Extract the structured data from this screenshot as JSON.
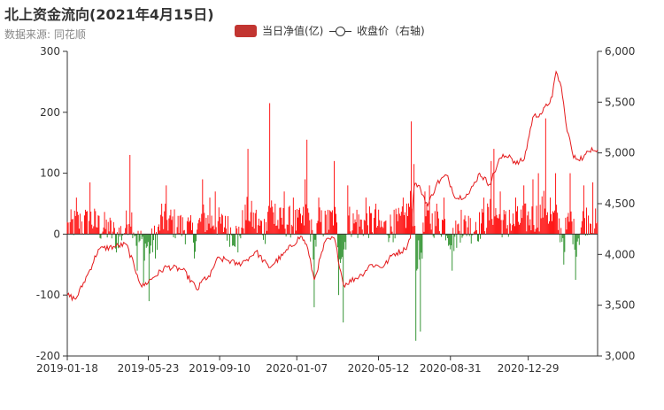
{
  "header": {
    "title": "北上资金流向(2021年4月15日)",
    "subtitle": "数据来源: 同花顺"
  },
  "legend": {
    "bar_label": "当日净值(亿)",
    "line_label": "收盘价（右轴)"
  },
  "colors": {
    "positive": "#ff0000",
    "negative": "#228b22",
    "legend_bar": "#c23531",
    "line": "#e41a1c",
    "axis": "#333333"
  },
  "chart_data": {
    "type": "bar+line",
    "x_ticks": [
      "2019-01-18",
      "2019-05-23",
      "2019-09-10",
      "2020-01-07",
      "2020-05-12",
      "2020-08-31",
      "2020-12-29"
    ],
    "x_range": [
      "2019-01-18",
      "2021-04-15"
    ],
    "left_axis": {
      "min": -200,
      "max": 300,
      "ticks": [
        -200,
        -100,
        0,
        100,
        200,
        300
      ]
    },
    "right_axis": {
      "min": 3000,
      "max": 6000,
      "ticks": [
        "3,000",
        "3,500",
        "4,000",
        "4,500",
        "5,000",
        "5,500",
        "6,000"
      ]
    },
    "net_inflow_keypoints": [
      [
        "2019-01-18",
        20
      ],
      [
        "2019-02-01",
        60
      ],
      [
        "2019-02-15",
        40
      ],
      [
        "2019-02-22",
        85
      ],
      [
        "2019-03-08",
        30
      ],
      [
        "2019-03-22",
        20
      ],
      [
        "2019-04-03",
        -30
      ],
      [
        "2019-04-17",
        10
      ],
      [
        "2019-04-25",
        130
      ],
      [
        "2019-05-06",
        -60
      ],
      [
        "2019-05-15",
        -80
      ],
      [
        "2019-05-24",
        -110
      ],
      [
        "2019-06-03",
        -40
      ],
      [
        "2019-06-12",
        50
      ],
      [
        "2019-06-20",
        80
      ],
      [
        "2019-07-10",
        30
      ],
      [
        "2019-07-24",
        20
      ],
      [
        "2019-08-02",
        -40
      ],
      [
        "2019-08-14",
        90
      ],
      [
        "2019-08-26",
        60
      ],
      [
        "2019-09-03",
        70
      ],
      [
        "2019-09-18",
        30
      ],
      [
        "2019-10-08",
        -30
      ],
      [
        "2019-10-24",
        140
      ],
      [
        "2019-11-05",
        40
      ],
      [
        "2019-11-20",
        20
      ],
      [
        "2019-11-26",
        215
      ],
      [
        "2019-12-05",
        50
      ],
      [
        "2019-12-18",
        70
      ],
      [
        "2020-01-02",
        60
      ],
      [
        "2020-01-10",
        40
      ],
      [
        "2020-01-20",
        90
      ],
      [
        "2020-01-23",
        155
      ],
      [
        "2020-02-03",
        -120
      ],
      [
        "2020-02-10",
        60
      ],
      [
        "2020-02-24",
        40
      ],
      [
        "2020-03-05",
        120
      ],
      [
        "2020-03-12",
        -100
      ],
      [
        "2020-03-19",
        -145
      ],
      [
        "2020-03-26",
        80
      ],
      [
        "2020-04-09",
        40
      ],
      [
        "2020-04-22",
        60
      ],
      [
        "2020-05-08",
        50
      ],
      [
        "2020-05-20",
        20
      ],
      [
        "2020-06-05",
        40
      ],
      [
        "2020-06-19",
        60
      ],
      [
        "2020-07-01",
        185
      ],
      [
        "2020-07-06",
        115
      ],
      [
        "2020-07-09",
        -175
      ],
      [
        "2020-07-16",
        -160
      ],
      [
        "2020-07-23",
        70
      ],
      [
        "2020-07-30",
        80
      ],
      [
        "2020-08-10",
        50
      ],
      [
        "2020-08-21",
        60
      ],
      [
        "2020-09-03",
        -60
      ],
      [
        "2020-09-16",
        40
      ],
      [
        "2020-09-28",
        30
      ],
      [
        "2020-10-09",
        20
      ],
      [
        "2020-10-21",
        60
      ],
      [
        "2020-11-02",
        120
      ],
      [
        "2020-11-06",
        140
      ],
      [
        "2020-11-16",
        70
      ],
      [
        "2020-11-30",
        40
      ],
      [
        "2020-12-10",
        60
      ],
      [
        "2020-12-22",
        80
      ],
      [
        "2021-01-05",
        90
      ],
      [
        "2021-01-14",
        100
      ],
      [
        "2021-01-25",
        190
      ],
      [
        "2021-02-01",
        60
      ],
      [
        "2021-02-09",
        100
      ],
      [
        "2021-02-22",
        -50
      ],
      [
        "2021-03-04",
        100
      ],
      [
        "2021-03-12",
        -75
      ],
      [
        "2021-03-24",
        80
      ],
      [
        "2021-04-07",
        85
      ],
      [
        "2021-04-15",
        20
      ]
    ],
    "close_price_keypoints": [
      [
        "2019-01-18",
        3600
      ],
      [
        "2019-01-31",
        3560
      ],
      [
        "2019-02-22",
        3850
      ],
      [
        "2019-03-07",
        4050
      ],
      [
        "2019-04-03",
        4080
      ],
      [
        "2019-04-19",
        4100
      ],
      [
        "2019-05-06",
        3800
      ],
      [
        "2019-05-13",
        3680
      ],
      [
        "2019-05-30",
        3770
      ],
      [
        "2019-06-20",
        3880
      ],
      [
        "2019-07-15",
        3850
      ],
      [
        "2019-08-07",
        3650
      ],
      [
        "2019-08-16",
        3760
      ],
      [
        "2019-08-26",
        3780
      ],
      [
        "2019-09-05",
        3950
      ],
      [
        "2019-09-20",
        3950
      ],
      [
        "2019-10-08",
        3900
      ],
      [
        "2019-10-22",
        3950
      ],
      [
        "2019-11-05",
        4030
      ],
      [
        "2019-11-25",
        3870
      ],
      [
        "2019-12-16",
        3990
      ],
      [
        "2020-01-13",
        4180
      ],
      [
        "2020-01-22",
        4100
      ],
      [
        "2020-02-03",
        3750
      ],
      [
        "2020-02-20",
        4130
      ],
      [
        "2020-03-05",
        4160
      ],
      [
        "2020-03-19",
        3700
      ],
      [
        "2020-04-16",
        3800
      ],
      [
        "2020-04-30",
        3900
      ],
      [
        "2020-05-20",
        3880
      ],
      [
        "2020-06-03",
        4000
      ],
      [
        "2020-06-22",
        4050
      ],
      [
        "2020-06-30",
        4160
      ],
      [
        "2020-07-06",
        4670
      ],
      [
        "2020-07-09",
        4700
      ],
      [
        "2020-07-16",
        4640
      ],
      [
        "2020-07-27",
        4480
      ],
      [
        "2020-08-10",
        4700
      ],
      [
        "2020-08-25",
        4780
      ],
      [
        "2020-09-09",
        4550
      ],
      [
        "2020-09-29",
        4600
      ],
      [
        "2020-10-15",
        4800
      ],
      [
        "2020-10-30",
        4690
      ],
      [
        "2020-11-16",
        4950
      ],
      [
        "2020-11-30",
        4980
      ],
      [
        "2020-12-10",
        4890
      ],
      [
        "2020-12-23",
        4940
      ],
      [
        "2021-01-05",
        5350
      ],
      [
        "2021-01-20",
        5400
      ],
      [
        "2021-02-04",
        5550
      ],
      [
        "2021-02-10",
        5800
      ],
      [
        "2021-02-18",
        5650
      ],
      [
        "2021-02-25",
        5300
      ],
      [
        "2021-03-09",
        4950
      ],
      [
        "2021-03-24",
        4950
      ],
      [
        "2021-04-06",
        5050
      ],
      [
        "2021-04-15",
        5030
      ]
    ]
  }
}
